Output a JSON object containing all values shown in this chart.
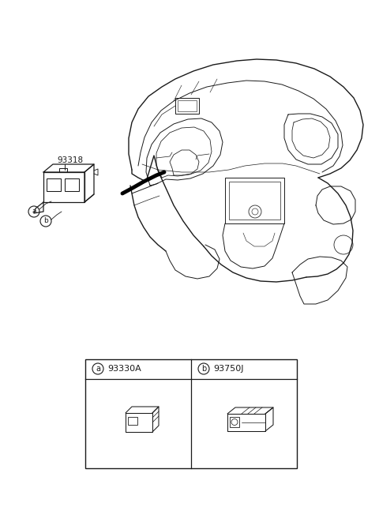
{
  "bg_color": "#ffffff",
  "line_color": "#1a1a1a",
  "fig_width": 4.8,
  "fig_height": 6.56,
  "dpi": 100,
  "part_label_93318": "93318",
  "table_label_a": "93330A",
  "table_label_b": "93750J"
}
